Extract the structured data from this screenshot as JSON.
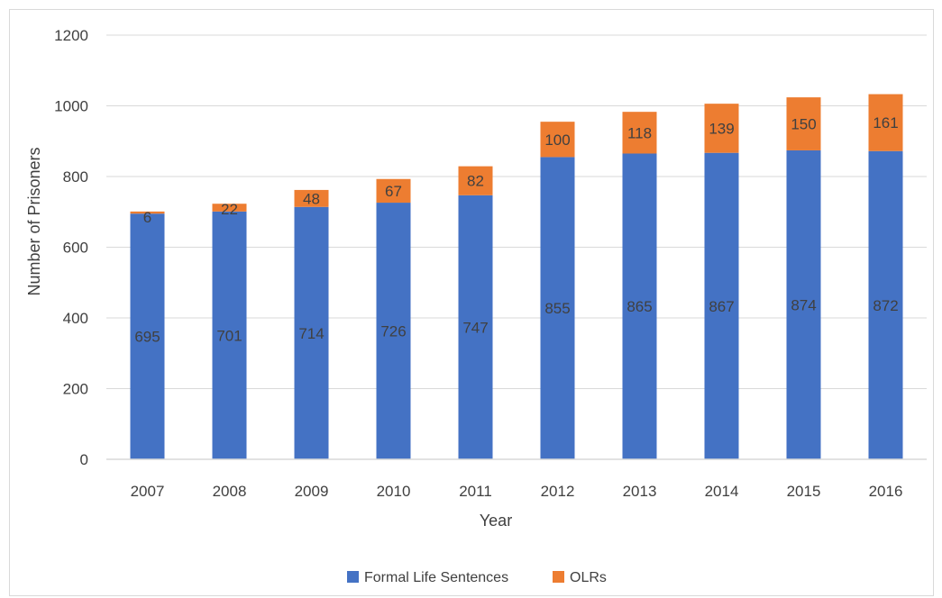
{
  "chart_data": {
    "type": "bar",
    "stacked": true,
    "categories": [
      "2007",
      "2008",
      "2009",
      "2010",
      "2011",
      "2012",
      "2013",
      "2014",
      "2015",
      "2016"
    ],
    "series": [
      {
        "name": "Formal Life Sentences",
        "color": "#4472c4",
        "values": [
          695,
          701,
          714,
          726,
          747,
          855,
          865,
          867,
          874,
          872
        ]
      },
      {
        "name": "OLRs",
        "color": "#ed7d31",
        "values": [
          6,
          22,
          48,
          67,
          82,
          100,
          118,
          139,
          150,
          161
        ]
      }
    ],
    "xlabel": "Year",
    "ylabel": "Number of Prisoners",
    "ylim": [
      0,
      1200
    ],
    "yticks": [
      0,
      200,
      400,
      600,
      800,
      1000,
      1200
    ],
    "grid": true,
    "legend": "bottom"
  }
}
